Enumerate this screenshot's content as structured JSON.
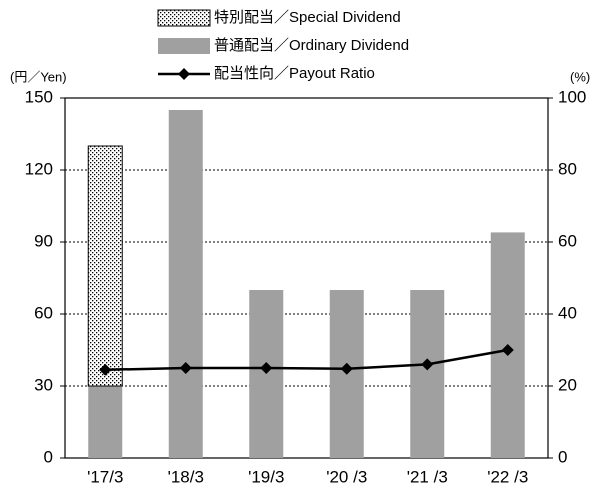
{
  "chart_data": {
    "type": "bar",
    "y_axis_label": "(円／Yen)",
    "y2_axis_label": "(%)",
    "categories": [
      "'17/3",
      "'18/3",
      "'19/3",
      "'20 /3",
      "'21 /3",
      "'22 /3"
    ],
    "series": [
      {
        "name": "特別配当／Special Dividend",
        "color": "#ffffff",
        "pattern": "dots",
        "stacked": true,
        "values": [
          100,
          null,
          null,
          null,
          null,
          null
        ]
      },
      {
        "name": "普通配当／Ordinary Dividend",
        "color": "#a0a0a0",
        "stacked": true,
        "values": [
          30,
          145,
          70,
          70,
          70,
          94
        ]
      },
      {
        "name": "配当性向／Payout Ratio",
        "type": "line",
        "color": "#000000",
        "axis": "y2",
        "values": [
          24.5,
          25,
          25,
          24.8,
          26,
          30
        ]
      }
    ],
    "ylim": [
      0,
      150
    ],
    "yticks": [
      0,
      30,
      60,
      90,
      120,
      150
    ],
    "y2lim": [
      0,
      100
    ],
    "y2ticks": [
      0,
      20,
      40,
      60,
      80,
      100
    ],
    "grid": true
  }
}
